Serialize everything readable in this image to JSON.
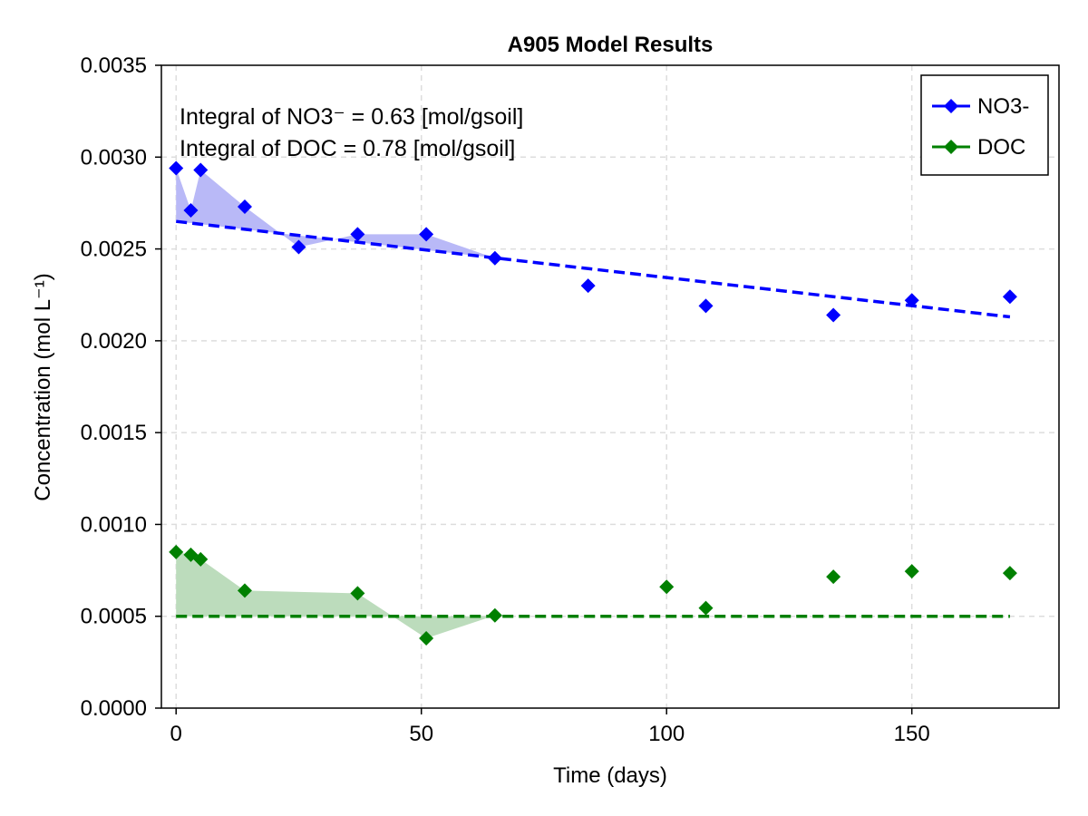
{
  "chart_data": {
    "type": "scatter",
    "title": "A905 Model Results",
    "xlabel": "Time (days)",
    "ylabel": "Concentration (mol L⁻¹)",
    "xlim": [
      -3,
      180
    ],
    "ylim": [
      0,
      0.0035
    ],
    "xticks": [
      0,
      50,
      100,
      150
    ],
    "xtick_labels": [
      "0",
      "50",
      "100",
      "150"
    ],
    "yticks": [
      0,
      0.0005,
      0.001,
      0.0015,
      0.002,
      0.0025,
      0.003,
      0.0035
    ],
    "ytick_labels": [
      "0.0000",
      "0.0005",
      "0.0010",
      "0.0015",
      "0.0020",
      "0.0025",
      "0.0030",
      "0.0035"
    ],
    "grid": true,
    "legend_position": "top-right",
    "annotations": [
      "Integral of NO3⁻ = 0.63 [mol/gsoil]",
      "Integral of DOC = 0.78 [mol/gsoil]"
    ],
    "series": [
      {
        "name": "NO3-",
        "color": "#0000ff",
        "marker": "diamond",
        "x": [
          0,
          3,
          5,
          14,
          25,
          37,
          51,
          65,
          84,
          108,
          134,
          150,
          170
        ],
        "y": [
          0.00294,
          0.00271,
          0.00293,
          0.00273,
          0.00251,
          0.00258,
          0.00258,
          0.00245,
          0.0023,
          0.00219,
          0.00214,
          0.00222,
          0.00224
        ],
        "fit": {
          "style": "dashed",
          "x": [
            0,
            170
          ],
          "y": [
            0.00265,
            0.00213
          ]
        },
        "shaded_until_x": 65
      },
      {
        "name": "DOC",
        "color": "#008000",
        "marker": "diamond",
        "x": [
          0,
          3,
          5,
          14,
          37,
          51,
          65,
          100,
          108,
          134,
          150,
          170
        ],
        "y": [
          0.00085,
          0.000835,
          0.00081,
          0.00064,
          0.000625,
          0.00038,
          0.000505,
          0.00066,
          0.000545,
          0.000715,
          0.000745,
          0.000735
        ],
        "fit": {
          "style": "dashed",
          "x": [
            0,
            170
          ],
          "y": [
            0.0005,
            0.0005
          ]
        },
        "shaded_until_x": 65
      }
    ]
  }
}
